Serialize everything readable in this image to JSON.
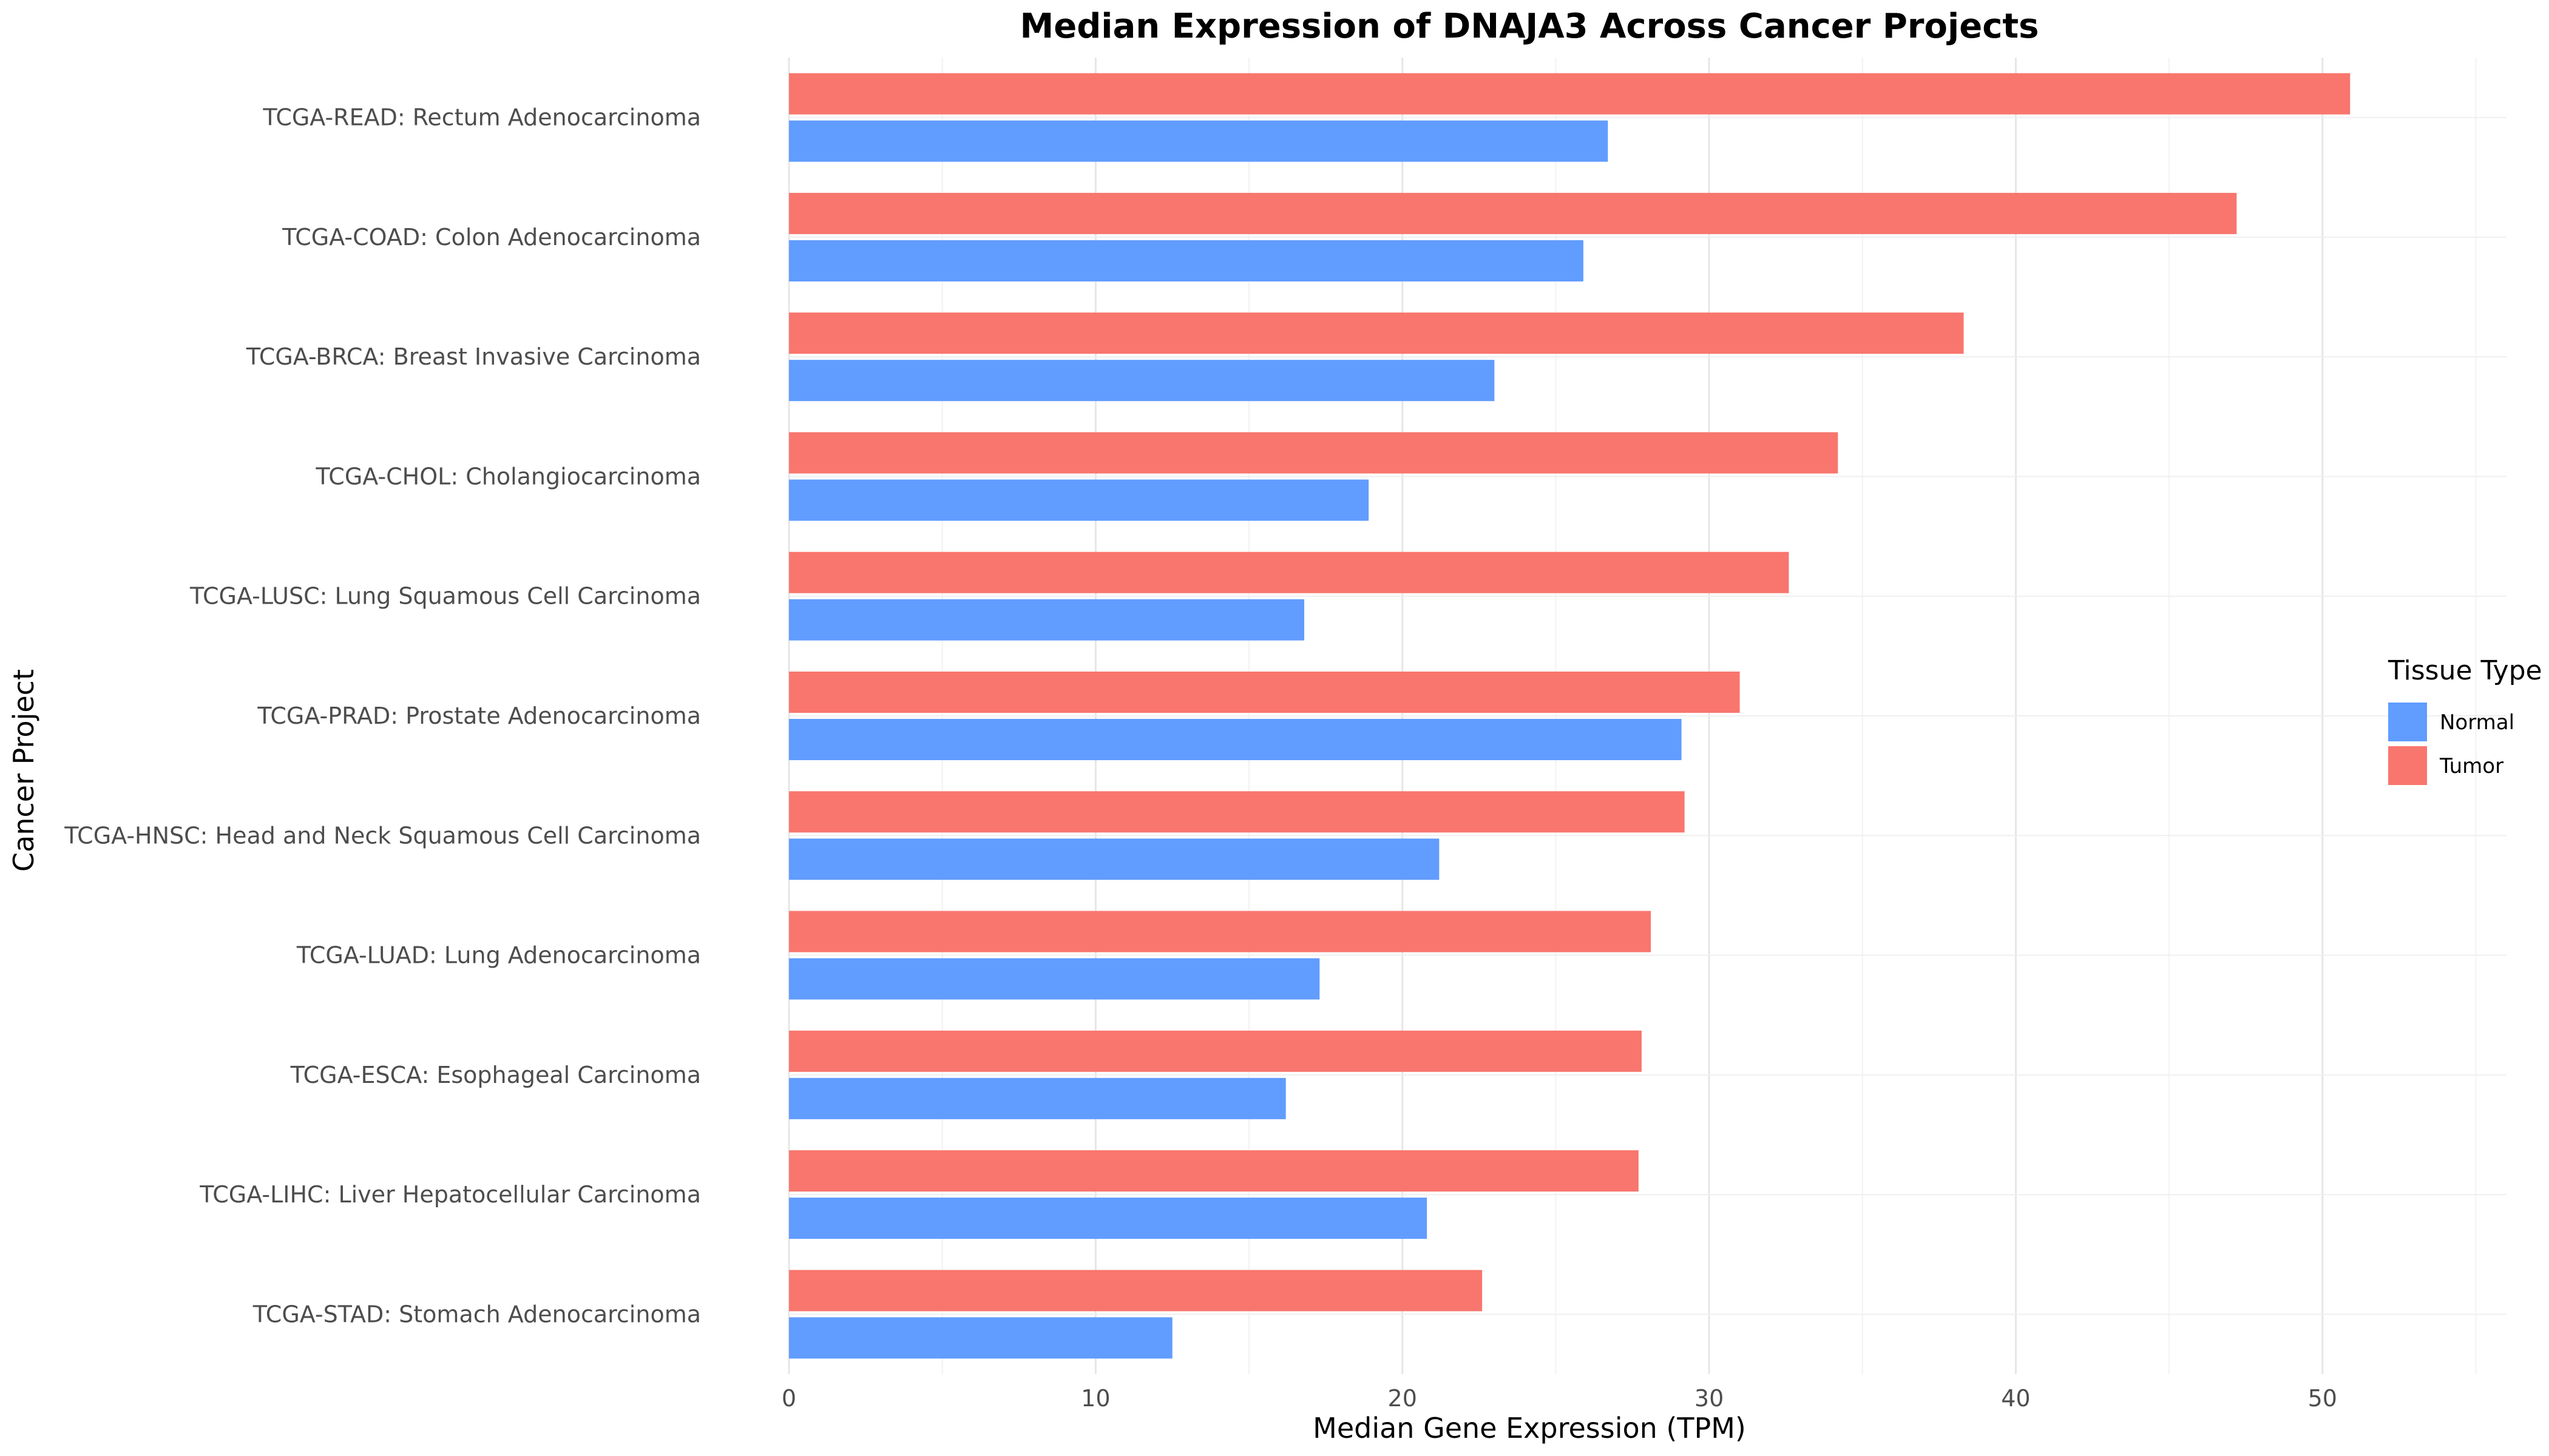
{
  "chart_data": {
    "type": "bar",
    "orientation": "horizontal",
    "title": "Median Expression of DNAJA3 Across Cancer Projects",
    "xlabel": "Median Gene Expression (TPM)",
    "ylabel": "Cancer Project",
    "xlim": [
      0,
      56
    ],
    "xticks": [
      0,
      10,
      20,
      30,
      40,
      50
    ],
    "grid": true,
    "legend": {
      "title": "Tissue Type",
      "placement": "right"
    },
    "categories": [
      "TCGA-READ: Rectum Adenocarcinoma",
      "TCGA-COAD: Colon Adenocarcinoma",
      "TCGA-BRCA: Breast Invasive Carcinoma",
      "TCGA-CHOL: Cholangiocarcinoma",
      "TCGA-LUSC: Lung Squamous Cell Carcinoma",
      "TCGA-PRAD: Prostate Adenocarcinoma",
      "TCGA-HNSC: Head and Neck Squamous Cell Carcinoma",
      "TCGA-LUAD: Lung Adenocarcinoma",
      "TCGA-ESCA: Esophageal Carcinoma",
      "TCGA-LIHC: Liver Hepatocellular Carcinoma",
      "TCGA-STAD: Stomach Adenocarcinoma"
    ],
    "series": [
      {
        "name": "Tumor",
        "color": "#F8766D",
        "values": [
          50.9,
          47.2,
          38.3,
          34.2,
          32.6,
          31.0,
          29.2,
          28.1,
          27.8,
          27.7,
          22.6
        ]
      },
      {
        "name": "Normal",
        "color": "#619CFF",
        "values": [
          26.7,
          25.9,
          23.0,
          18.9,
          16.8,
          29.1,
          21.2,
          17.3,
          16.2,
          20.8,
          12.5
        ]
      }
    ]
  }
}
